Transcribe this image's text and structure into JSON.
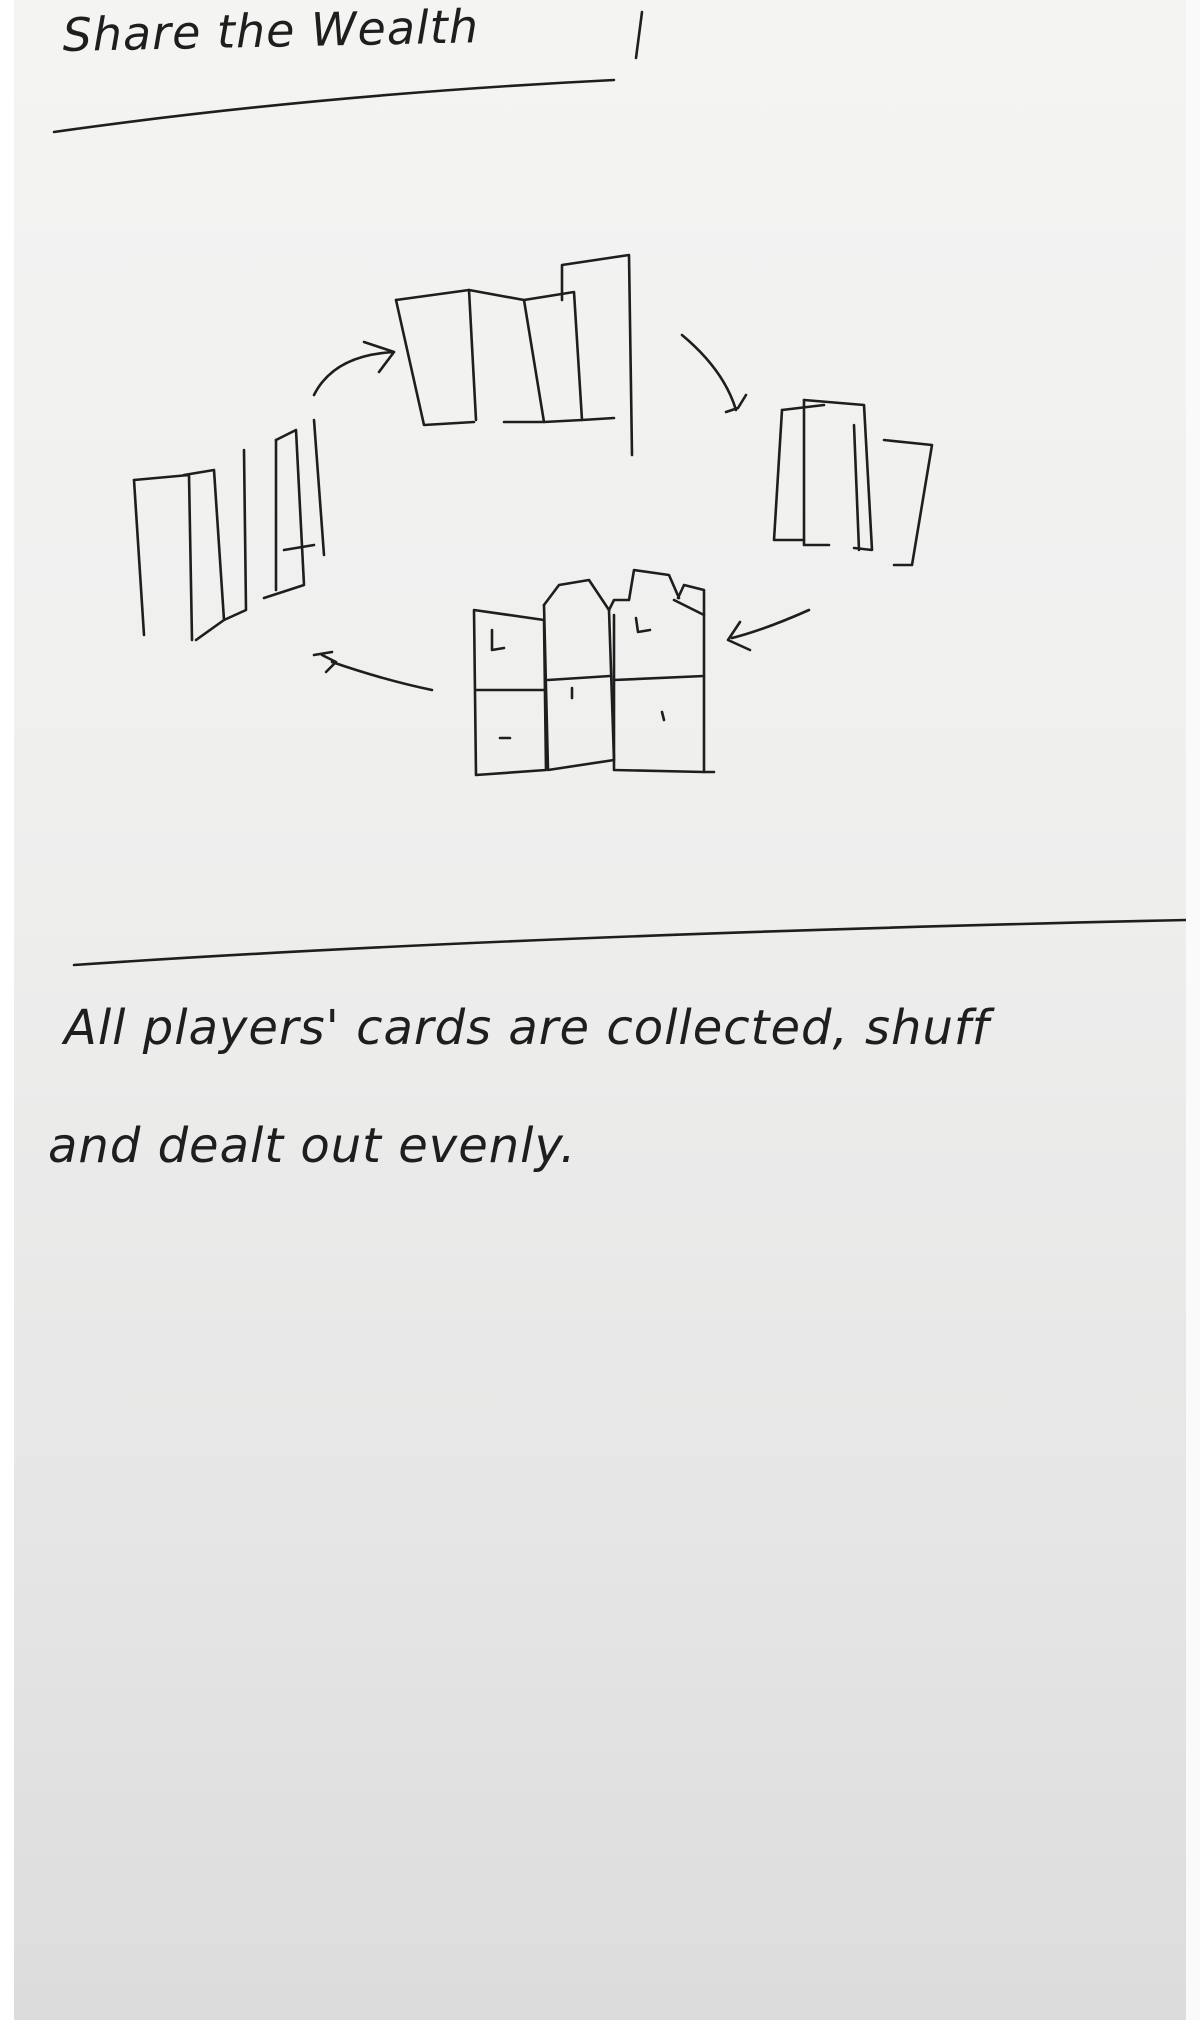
{
  "title": "Share the Wealth",
  "caption": {
    "line1": "All players' cards are collected, shuff",
    "line2": "and dealt out evenly."
  },
  "colors": {
    "paper": "#efefee",
    "ink": "#1e1e1e"
  }
}
